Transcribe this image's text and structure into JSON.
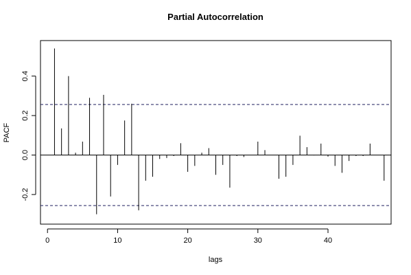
{
  "chart_data": {
    "type": "bar",
    "title": "Partial Autocorrelation",
    "xlabel": "lags",
    "ylabel": "PACF",
    "xlim": [
      -1,
      49
    ],
    "ylim": [
      -0.35,
      0.58
    ],
    "x_ticks": [
      0,
      10,
      20,
      30,
      40
    ],
    "y_ticks": [
      -0.2,
      0.0,
      0.2,
      0.4
    ],
    "x_tick_labels": [
      "0",
      "10",
      "20",
      "30",
      "40"
    ],
    "y_tick_labels": [
      "-0.2",
      "0.0",
      "0.2",
      "0.4"
    ],
    "conf_limit": 0.256,
    "conf_line_style": "dashed",
    "colors": {
      "bars": "#000000",
      "conf": "#1c1c5c",
      "frame": "#000000",
      "zero_line": "#000000"
    },
    "grid": false,
    "x": [
      1,
      2,
      3,
      4,
      5,
      6,
      7,
      8,
      9,
      10,
      11,
      12,
      13,
      14,
      15,
      16,
      17,
      18,
      19,
      20,
      21,
      22,
      23,
      24,
      25,
      26,
      27,
      28,
      29,
      30,
      31,
      32,
      33,
      34,
      35,
      36,
      37,
      38,
      39,
      40,
      41,
      42,
      43,
      44,
      45,
      46,
      47,
      48
    ],
    "values": [
      0.54,
      0.135,
      0.4,
      0.012,
      0.068,
      0.29,
      -0.3,
      0.305,
      -0.21,
      -0.05,
      0.175,
      0.26,
      -0.28,
      -0.13,
      -0.11,
      -0.02,
      -0.015,
      -0.005,
      0.06,
      -0.085,
      -0.055,
      0.012,
      0.035,
      -0.1,
      -0.05,
      -0.165,
      -0.005,
      -0.01,
      0.0,
      0.068,
      0.025,
      0.0,
      -0.12,
      -0.11,
      -0.05,
      0.098,
      0.04,
      -0.002,
      0.058,
      -0.008,
      -0.055,
      -0.09,
      -0.03,
      -0.005,
      -0.005,
      0.058,
      0.0,
      -0.13
    ]
  }
}
